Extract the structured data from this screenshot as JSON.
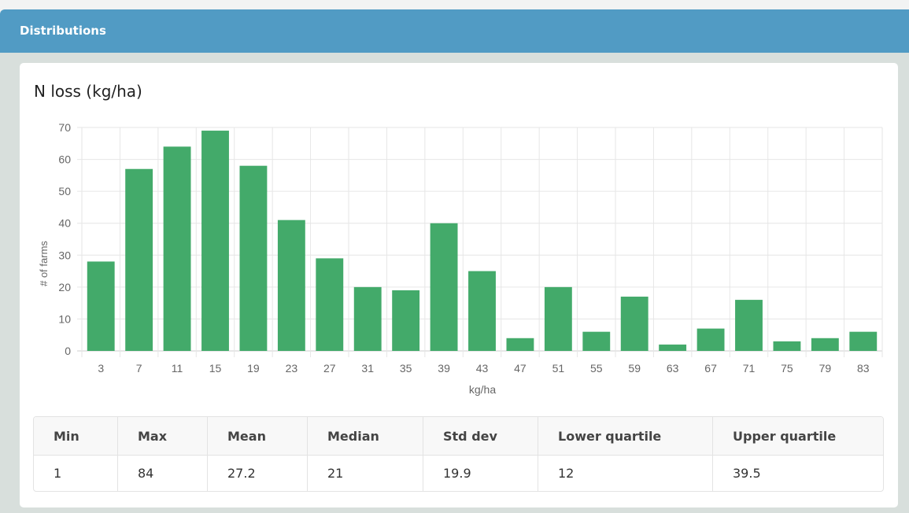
{
  "panel": {
    "title": "Distributions"
  },
  "card": {
    "title": "N loss (kg/ha)"
  },
  "chart_data": {
    "type": "bar",
    "title": "N loss (kg/ha)",
    "xlabel": "kg/ha",
    "ylabel": "# of farms",
    "categories": [
      "3",
      "7",
      "11",
      "15",
      "19",
      "23",
      "27",
      "31",
      "35",
      "39",
      "43",
      "47",
      "51",
      "55",
      "59",
      "63",
      "67",
      "71",
      "75",
      "79",
      "83"
    ],
    "values": [
      28,
      57,
      64,
      69,
      58,
      41,
      29,
      20,
      19,
      40,
      25,
      4,
      20,
      6,
      17,
      2,
      7,
      16,
      3,
      4,
      6
    ],
    "ylim": [
      0,
      70
    ],
    "yticks": [
      0,
      10,
      20,
      30,
      40,
      50,
      60,
      70
    ],
    "grid": true,
    "bar_color": "#43aa6a"
  },
  "stats": {
    "headers": [
      "Min",
      "Max",
      "Mean",
      "Median",
      "Std dev",
      "Lower quartile",
      "Upper quartile"
    ],
    "values": [
      "1",
      "84",
      "27.2",
      "21",
      "19.9",
      "12",
      "39.5"
    ]
  }
}
